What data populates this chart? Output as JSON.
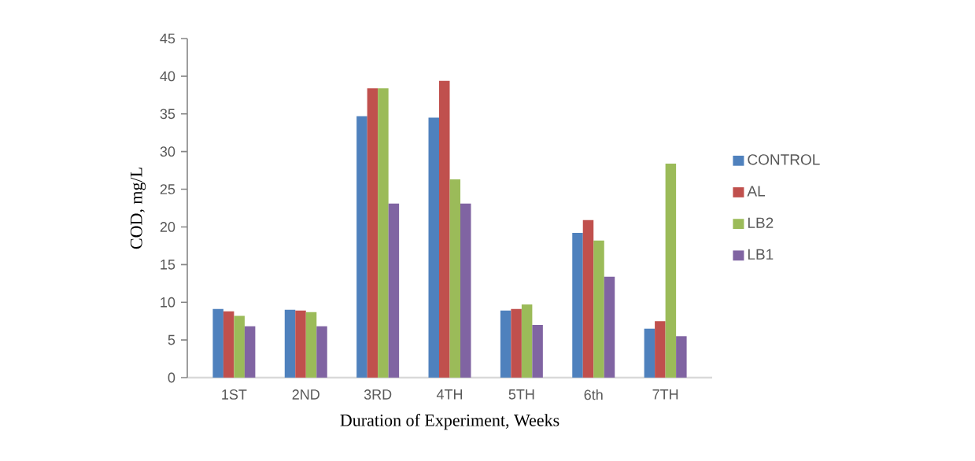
{
  "chart_data": {
    "type": "bar",
    "xlabel": "Duration of Experiment, Weeks",
    "ylabel": "COD, mg/L",
    "categories": [
      "1ST",
      "2ND",
      "3RD",
      "4TH",
      "5TH",
      "6th",
      "7TH"
    ],
    "series": [
      {
        "name": "CONTROL",
        "color": "#4f81bd",
        "values": [
          9.1,
          9.0,
          34.7,
          34.5,
          8.9,
          19.2,
          6.5
        ]
      },
      {
        "name": "AL",
        "color": "#c0504d",
        "values": [
          8.8,
          8.9,
          38.4,
          39.4,
          9.1,
          20.9,
          7.5
        ]
      },
      {
        "name": "LB2",
        "color": "#9bbb59",
        "values": [
          8.2,
          8.7,
          38.4,
          26.3,
          9.7,
          18.2,
          28.4
        ]
      },
      {
        "name": "LB1",
        "color": "#8064a2",
        "values": [
          6.8,
          6.8,
          23.1,
          23.1,
          7.0,
          13.4,
          5.5
        ]
      }
    ],
    "ylim": [
      0,
      45
    ],
    "yticks": [
      0,
      5,
      10,
      15,
      20,
      25,
      30,
      35,
      40,
      45
    ],
    "legend": "right",
    "grid": false
  }
}
